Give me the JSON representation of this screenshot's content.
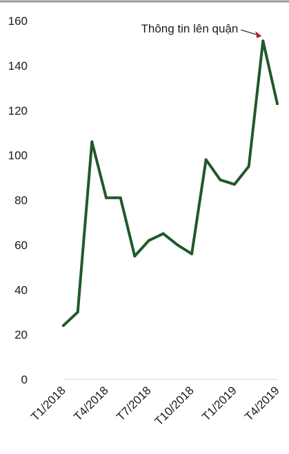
{
  "chart_data": {
    "type": "line",
    "title": "",
    "xlabel": "",
    "ylabel": "",
    "ylim": [
      0,
      160
    ],
    "yticks": [
      0,
      20,
      40,
      60,
      80,
      100,
      120,
      140,
      160
    ],
    "grid": false,
    "x_tick_labels": [
      "T1/2018",
      "T4/2018",
      "T7/2018",
      "T10/2018",
      "T1/2019",
      "T4/2019"
    ],
    "series": [
      {
        "values": [
          24,
          30,
          106,
          81,
          81,
          55,
          62,
          65,
          60,
          56,
          98,
          89,
          87,
          95,
          151,
          123
        ]
      }
    ],
    "annotation": {
      "text": "Thông tin lên quận",
      "point_index": 14
    },
    "line_color": "#1f5a2a",
    "annotation_arrow_color": "#b0243a"
  }
}
